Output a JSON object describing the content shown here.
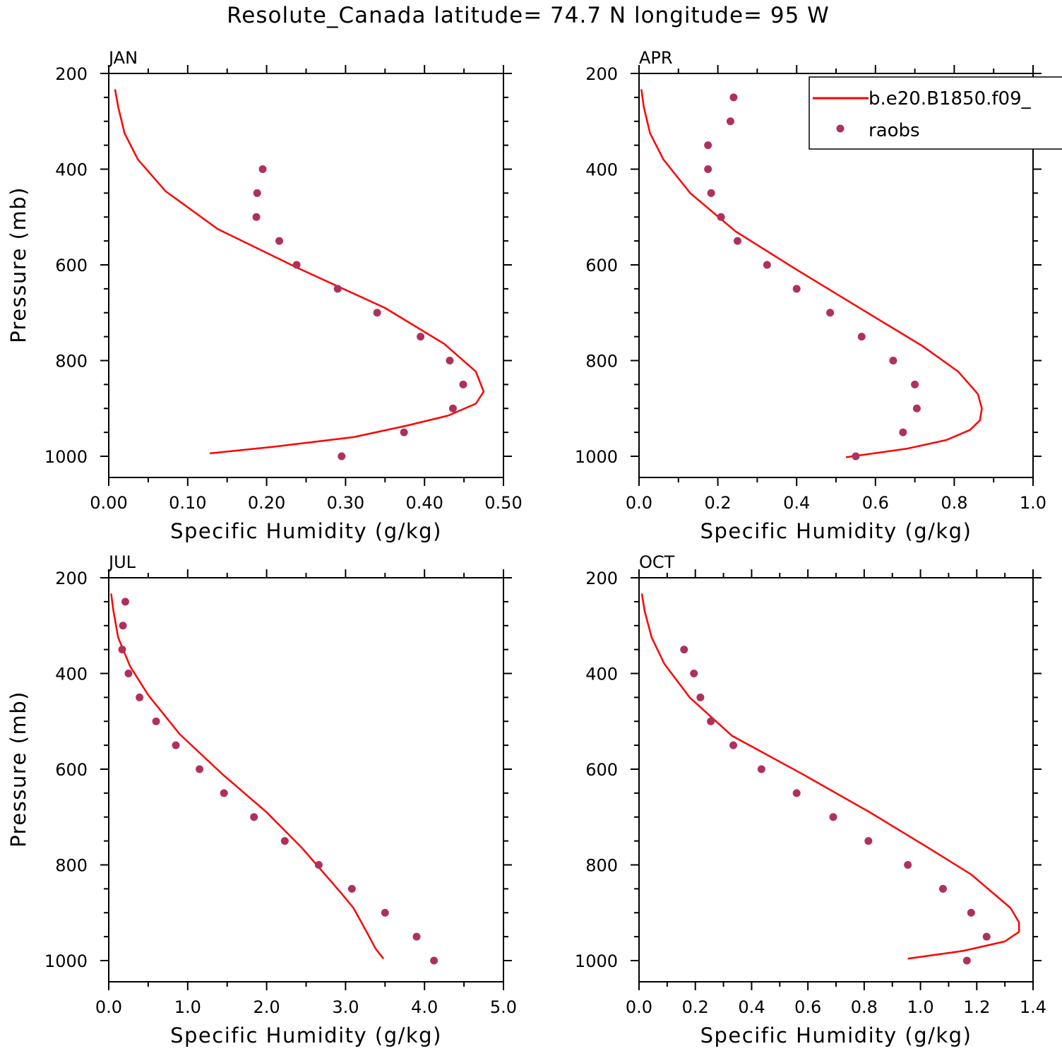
{
  "title": "Resolute_Canada  latitude= 74.7 N longitude= 95 W",
  "colors": {
    "model_line": "#ff0000",
    "obs_marker": "#b0305c",
    "axis": "#000000"
  },
  "legend": {
    "placement": "top-right",
    "entries": [
      {
        "label": "b.e20.B1850.f09_",
        "style": "line",
        "color": "#ff0000"
      },
      {
        "label": "raobs",
        "style": "marker",
        "color": "#b0305c"
      }
    ]
  },
  "chart_data": [
    {
      "type": "line",
      "panel": "JAN",
      "xlabel": "Specific Humidity (g/kg)",
      "ylabel": "Pressure (mb)",
      "xlim": [
        0,
        0.5
      ],
      "ylim": [
        1000,
        200
      ],
      "x_ticks": [
        "0.00",
        "0.10",
        "0.20",
        "0.30",
        "0.40",
        "0.50"
      ],
      "y_ticks": [
        "200",
        "400",
        "600",
        "800",
        "1000"
      ],
      "series": [
        {
          "name": "b.e20.B1850.f09_",
          "style": "line",
          "points": [
            [
              0.008,
              233
            ],
            [
              0.012,
              270
            ],
            [
              0.02,
              325
            ],
            [
              0.037,
              380
            ],
            [
              0.072,
              446
            ],
            [
              0.138,
              525
            ],
            [
              0.24,
              607
            ],
            [
              0.35,
              690
            ],
            [
              0.425,
              765
            ],
            [
              0.465,
              823
            ],
            [
              0.475,
              865
            ],
            [
              0.465,
              890
            ],
            [
              0.43,
              915
            ],
            [
              0.38,
              935
            ],
            [
              0.31,
              960
            ],
            [
              0.21,
              980
            ],
            [
              0.128,
              994
            ]
          ]
        },
        {
          "name": "raobs",
          "style": "marker",
          "points": [
            [
              0.195,
              400
            ],
            [
              0.188,
              450
            ],
            [
              0.187,
              500
            ],
            [
              0.216,
              550
            ],
            [
              0.238,
              600
            ],
            [
              0.29,
              650
            ],
            [
              0.34,
              700
            ],
            [
              0.395,
              750
            ],
            [
              0.432,
              800
            ],
            [
              0.449,
              850
            ],
            [
              0.436,
              900
            ],
            [
              0.374,
              950
            ],
            [
              0.295,
              1000
            ]
          ]
        }
      ]
    },
    {
      "type": "line",
      "panel": "APR",
      "xlabel": "Specific Humidity (g/kg)",
      "ylabel": "",
      "xlim": [
        0,
        1.0
      ],
      "ylim": [
        1000,
        200
      ],
      "x_ticks": [
        "0.0",
        "0.2",
        "0.4",
        "0.6",
        "0.8",
        "1.0"
      ],
      "y_ticks": [
        "200",
        "400",
        "600",
        "800",
        "1000"
      ],
      "series": [
        {
          "name": "b.e20.B1850.f09_",
          "style": "line",
          "points": [
            [
              0.006,
              233
            ],
            [
              0.012,
              270
            ],
            [
              0.028,
              325
            ],
            [
              0.062,
              380
            ],
            [
              0.13,
              450
            ],
            [
              0.245,
              530
            ],
            [
              0.4,
              610
            ],
            [
              0.58,
              700
            ],
            [
              0.72,
              770
            ],
            [
              0.81,
              823
            ],
            [
              0.86,
              870
            ],
            [
              0.87,
              900
            ],
            [
              0.865,
              925
            ],
            [
              0.84,
              945
            ],
            [
              0.78,
              966
            ],
            [
              0.68,
              984
            ],
            [
              0.525,
              1002
            ]
          ]
        },
        {
          "name": "raobs",
          "style": "marker",
          "points": [
            [
              0.24,
              250
            ],
            [
              0.232,
              300
            ],
            [
              0.175,
              350
            ],
            [
              0.175,
              400
            ],
            [
              0.183,
              450
            ],
            [
              0.208,
              500
            ],
            [
              0.25,
              550
            ],
            [
              0.325,
              600
            ],
            [
              0.4,
              650
            ],
            [
              0.485,
              700
            ],
            [
              0.565,
              750
            ],
            [
              0.645,
              800
            ],
            [
              0.7,
              850
            ],
            [
              0.705,
              900
            ],
            [
              0.67,
              950
            ],
            [
              0.55,
              1000
            ]
          ]
        }
      ]
    },
    {
      "type": "line",
      "panel": "JUL",
      "xlabel": "Specific Humidity (g/kg)",
      "ylabel": "Pressure (mb)",
      "xlim": [
        0,
        5.0
      ],
      "ylim": [
        1000,
        200
      ],
      "x_ticks": [
        "0.0",
        "1.0",
        "2.0",
        "3.0",
        "4.0",
        "5.0"
      ],
      "y_ticks": [
        "200",
        "400",
        "600",
        "800",
        "1000"
      ],
      "series": [
        {
          "name": "b.e20.B1850.f09_",
          "style": "line",
          "points": [
            [
              0.03,
              233
            ],
            [
              0.06,
              270
            ],
            [
              0.12,
              325
            ],
            [
              0.27,
              385
            ],
            [
              0.5,
              445
            ],
            [
              0.9,
              527
            ],
            [
              1.45,
              612
            ],
            [
              2.0,
              690
            ],
            [
              2.45,
              765
            ],
            [
              2.75,
              822
            ],
            [
              2.95,
              860
            ],
            [
              3.1,
              890
            ],
            [
              3.2,
              920
            ],
            [
              3.3,
              950
            ],
            [
              3.38,
              975
            ],
            [
              3.48,
              996
            ]
          ]
        },
        {
          "name": "raobs",
          "style": "marker",
          "points": [
            [
              0.21,
              250
            ],
            [
              0.18,
              300
            ],
            [
              0.17,
              350
            ],
            [
              0.25,
              400
            ],
            [
              0.39,
              450
            ],
            [
              0.6,
              500
            ],
            [
              0.85,
              550
            ],
            [
              1.15,
              600
            ],
            [
              1.46,
              650
            ],
            [
              1.84,
              700
            ],
            [
              2.23,
              750
            ],
            [
              2.66,
              800
            ],
            [
              3.08,
              850
            ],
            [
              3.5,
              900
            ],
            [
              3.9,
              950
            ],
            [
              4.12,
              1000
            ]
          ]
        }
      ]
    },
    {
      "type": "line",
      "panel": "OCT",
      "xlabel": "Specific Humidity (g/kg)",
      "ylabel": "",
      "xlim": [
        0,
        1.4
      ],
      "ylim": [
        1000,
        200
      ],
      "x_ticks": [
        "0.0",
        "0.2",
        "0.4",
        "0.6",
        "0.8",
        "1.0",
        "1.2",
        "1.4"
      ],
      "y_ticks": [
        "200",
        "400",
        "600",
        "800",
        "1000"
      ],
      "series": [
        {
          "name": "b.e20.B1850.f09_",
          "style": "line",
          "points": [
            [
              0.01,
              233
            ],
            [
              0.02,
              270
            ],
            [
              0.045,
              325
            ],
            [
              0.09,
              380
            ],
            [
              0.18,
              450
            ],
            [
              0.33,
              530
            ],
            [
              0.58,
              610
            ],
            [
              0.82,
              690
            ],
            [
              1.03,
              765
            ],
            [
              1.18,
              820
            ],
            [
              1.27,
              865
            ],
            [
              1.32,
              890
            ],
            [
              1.35,
              920
            ],
            [
              1.35,
              940
            ],
            [
              1.3,
              960
            ],
            [
              1.15,
              980
            ],
            [
              0.955,
              996
            ]
          ]
        },
        {
          "name": "raobs",
          "style": "marker",
          "points": [
            [
              0.16,
              350
            ],
            [
              0.195,
              400
            ],
            [
              0.218,
              450
            ],
            [
              0.255,
              500
            ],
            [
              0.335,
              550
            ],
            [
              0.435,
              600
            ],
            [
              0.56,
              650
            ],
            [
              0.69,
              700
            ],
            [
              0.815,
              750
            ],
            [
              0.955,
              800
            ],
            [
              1.08,
              850
            ],
            [
              1.18,
              900
            ],
            [
              1.235,
              950
            ],
            [
              1.165,
              1000
            ]
          ]
        }
      ]
    }
  ]
}
